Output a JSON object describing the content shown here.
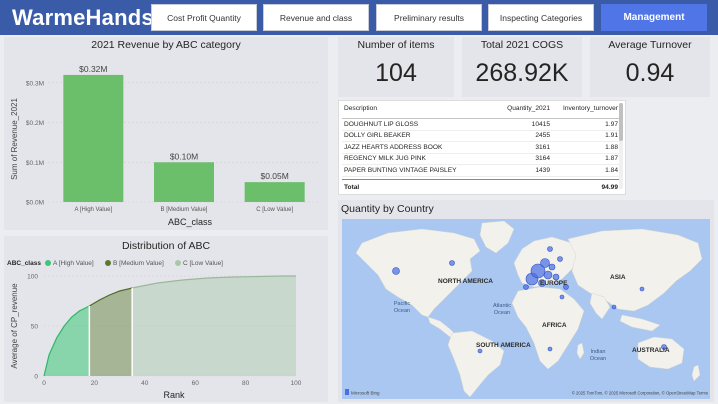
{
  "header": {
    "logo": "WarmeHands",
    "tabs": [
      {
        "label": "Cost Profit Quantity",
        "active": false
      },
      {
        "label": "Revenue and class",
        "active": false
      },
      {
        "label": "Preliminary results",
        "active": false
      },
      {
        "label": "Inspecting Categories",
        "active": false
      },
      {
        "label": "Management",
        "active": true
      }
    ]
  },
  "kpis": [
    {
      "label": "Number of items",
      "value": "104"
    },
    {
      "label": "Total 2021 COGS",
      "value": "268.92K"
    },
    {
      "label": "Average Turnover",
      "value": "0.94"
    }
  ],
  "revenue_chart": {
    "title": "2021 Revenue by ABC category",
    "ylabel": "Sum of Revenue_2021",
    "xlabel": "ABC_class",
    "yticks": [
      "$0.0M",
      "$0.1M",
      "$0.2M",
      "$0.3M"
    ],
    "color": "#6bbf6b"
  },
  "distribution_chart": {
    "title": "Distribution of ABC",
    "legend_title": "ABC_class",
    "ylabel": "Average of CP_revenue",
    "xlabel": "Rank",
    "xticks": [
      "0",
      "20",
      "40",
      "60",
      "80",
      "100"
    ],
    "yticks": [
      "0",
      "50",
      "100"
    ],
    "colors": {
      "A": "#3cc677",
      "B": "#5a7a2f",
      "C": "#a8c8a8"
    }
  },
  "table": {
    "columns": [
      "Description",
      "Quantity_2021",
      "Inventory_turnover"
    ],
    "rows": [
      {
        "description": "DOUGHNUT LIP GLOSS",
        "quantity": "10415",
        "turnover": "1.97"
      },
      {
        "description": "DOLLY GIRL BEAKER",
        "quantity": "2455",
        "turnover": "1.91"
      },
      {
        "description": "JAZZ HEARTS ADDRESS BOOK",
        "quantity": "3161",
        "turnover": "1.88"
      },
      {
        "description": "REGENCY MILK JUG PINK",
        "quantity": "3164",
        "turnover": "1.87"
      },
      {
        "description": "PAPER BUNTING VINTAGE PAISLEY",
        "quantity": "1439",
        "turnover": "1.84"
      }
    ],
    "total_label": "Total",
    "total_turnover": "94.99"
  },
  "map": {
    "title": "Quantity by Country",
    "labels": {
      "north_america": "NORTH AMERICA",
      "europe": "EUROPE",
      "asia": "ASIA",
      "africa": "AFRICA",
      "south_america": "SOUTH AMERICA",
      "australia": "AUSTRALIA",
      "pacific": "Pacific",
      "pacific2": "Ocean",
      "atlantic": "Atlantic",
      "atlantic2": "Ocean",
      "indian": "Indian",
      "indian2": "Ocean"
    },
    "brand": "Microsoft Bing",
    "attribution": "© 2025 TomTom, © 2025 Microsoft Corporation, © OpenStreetMap  Terms",
    "land_color": "#f2f1ec",
    "water_color": "#a9c7f0",
    "bubble_color": "#4a6fe3"
  },
  "chart_data": [
    {
      "type": "bar",
      "title": "2021 Revenue by ABC category",
      "xlabel": "ABC_class",
      "ylabel": "Sum of Revenue_2021",
      "categories": [
        "A [High Value]",
        "B [Medium Value]",
        "C [Low Value]"
      ],
      "values": [
        0.32,
        0.1,
        0.05
      ],
      "data_labels": [
        "$0.32M",
        "$0.10M",
        "$0.05M"
      ],
      "ylim": [
        0,
        0.35
      ],
      "grid": true
    },
    {
      "type": "area",
      "title": "Distribution of ABC",
      "xlabel": "Rank",
      "ylabel": "Average of CP_revenue",
      "legend_position": "top-left",
      "xlim": [
        0,
        100
      ],
      "ylim": [
        0,
        100
      ],
      "series": [
        {
          "name": "A [High Value]",
          "x": [
            0,
            2,
            5,
            8,
            11,
            14,
            18
          ],
          "y": [
            0,
            21,
            38,
            50,
            59,
            65,
            70
          ]
        },
        {
          "name": "B [Medium Value]",
          "x": [
            18,
            22,
            26,
            30,
            35
          ],
          "y": [
            70,
            76,
            81,
            85,
            88
          ]
        },
        {
          "name": "C [Low Value]",
          "x": [
            35,
            45,
            55,
            65,
            75,
            85,
            95,
            100
          ],
          "y": [
            88,
            93,
            96,
            98,
            99,
            99.5,
            100,
            100
          ]
        }
      ]
    }
  ]
}
